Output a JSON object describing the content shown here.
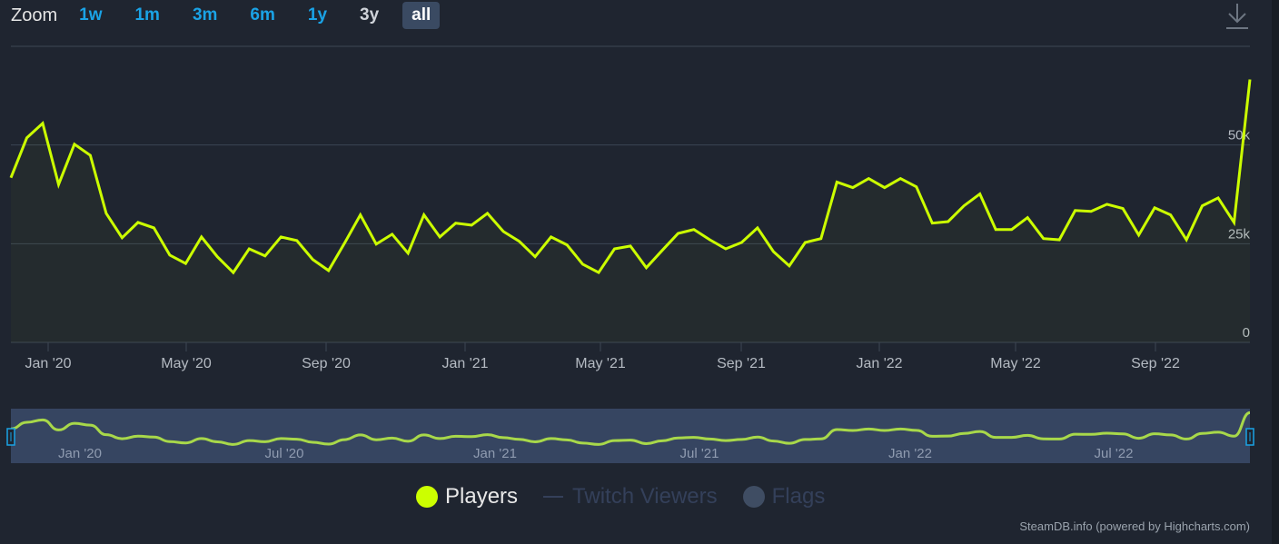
{
  "zoom": {
    "label": "Zoom",
    "buttons": [
      {
        "label": "1w",
        "state": "enabled"
      },
      {
        "label": "1m",
        "state": "enabled"
      },
      {
        "label": "3m",
        "state": "enabled"
      },
      {
        "label": "6m",
        "state": "enabled"
      },
      {
        "label": "1y",
        "state": "enabled"
      },
      {
        "label": "3y",
        "state": "disabled"
      },
      {
        "label": "all",
        "state": "active"
      }
    ]
  },
  "icons": {
    "download": "download-icon"
  },
  "legend": [
    {
      "label": "Players",
      "color": "#ccff00",
      "visible": true
    },
    {
      "label": "Twitch Viewers",
      "color": "#34405a",
      "visible": false
    },
    {
      "label": "Flags",
      "color": "#3f4d63",
      "visible": false
    }
  ],
  "credits": "SteamDB.info (powered by Highcharts.com)",
  "colors": {
    "line": "#ccff00",
    "navigator_line": "#a8d84a",
    "background": "#1f2530",
    "navigator_bg": "#364561",
    "grid": "#3d4654",
    "axis_text": "#b4bac2",
    "accent": "#1aa3e6"
  },
  "chart_data": {
    "type": "line",
    "title": "",
    "xlabel": "",
    "ylabel": "",
    "series": [
      {
        "name": "Players",
        "values": [
          41700,
          51800,
          55500,
          40000,
          50200,
          47400,
          32700,
          26500,
          30400,
          29000,
          22100,
          20000,
          26700,
          21700,
          17700,
          23700,
          21900,
          26700,
          25800,
          21000,
          18200,
          25100,
          32300,
          24900,
          27400,
          22600,
          32300,
          26700,
          30200,
          29700,
          32700,
          28100,
          25600,
          21700,
          26700,
          24700,
          19800,
          17700,
          23700,
          24400,
          18900,
          23300,
          27600,
          28600,
          26000,
          23700,
          25300,
          29000,
          23000,
          19400,
          25300,
          26300,
          40600,
          39200,
          41500,
          39200,
          41500,
          39400,
          30200,
          30600,
          34600,
          37600,
          28600,
          28600,
          31600,
          26300,
          26000,
          33400,
          33200,
          35000,
          33900,
          27200,
          34100,
          32300,
          26000,
          34600,
          36600,
          30400,
          66600
        ]
      }
    ],
    "x_tick_labels": [
      "Jan '20",
      "May '20",
      "Sep '20",
      "Jan '21",
      "May '21",
      "Sep '21",
      "Jan '22",
      "May '22",
      "Sep '22"
    ],
    "y_tick_labels": [
      "0",
      "25k",
      "50k"
    ],
    "ylim": [
      0,
      75000
    ],
    "grid": true,
    "legend_position": "bottom",
    "navigator": {
      "x_tick_labels": [
        "Jan '20",
        "Jul '20",
        "Jan '21",
        "Jul '21",
        "Jan '22",
        "Jul '22"
      ]
    }
  }
}
